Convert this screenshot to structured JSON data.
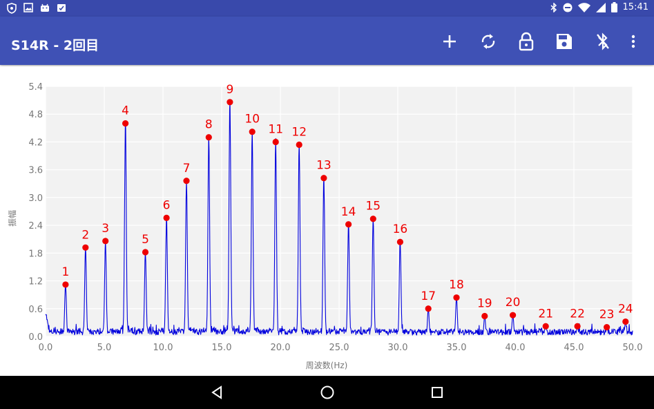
{
  "status_bar": {
    "time": "15:41",
    "left_icons": [
      "shield-icon",
      "image-icon",
      "android-icon",
      "clipboard-check-icon"
    ],
    "right_icons": [
      "bluetooth-icon",
      "do-not-disturb-icon",
      "wifi-icon",
      "signal-icon",
      "battery-icon"
    ]
  },
  "app_bar": {
    "title": "S14R - 2回目",
    "actions": [
      "add-icon",
      "sync-icon",
      "lock-icon",
      "save-icon",
      "bluetooth-disabled-icon",
      "more-vert-icon"
    ]
  },
  "colors": {
    "appbar": "#3f51b5",
    "statusbar": "#3949ab",
    "line": "#0000dd",
    "peak": "#ee0000",
    "plot_bg": "#f2f2f2"
  },
  "chart_data": {
    "type": "line",
    "xlabel": "周波数(Hz)",
    "ylabel": "振幅",
    "xlim": [
      0,
      50
    ],
    "ylim": [
      0,
      5.4
    ],
    "x_ticks": [
      "0.0",
      "5.0",
      "10.0",
      "15.0",
      "20.0",
      "25.0",
      "30.0",
      "35.0",
      "40.0",
      "45.0",
      "50.0"
    ],
    "y_ticks": [
      "0.0",
      "0.6",
      "1.2",
      "1.8",
      "2.4",
      "3.0",
      "3.6",
      "4.2",
      "4.8",
      "5.4"
    ],
    "grid": true,
    "peaks": [
      {
        "label": "1",
        "x": 1.7,
        "y": 1.12
      },
      {
        "label": "2",
        "x": 3.4,
        "y": 1.92
      },
      {
        "label": "3",
        "x": 5.1,
        "y": 2.06
      },
      {
        "label": "4",
        "x": 6.8,
        "y": 4.6
      },
      {
        "label": "5",
        "x": 8.5,
        "y": 1.82
      },
      {
        "label": "6",
        "x": 10.3,
        "y": 2.56
      },
      {
        "label": "7",
        "x": 12.0,
        "y": 3.36
      },
      {
        "label": "8",
        "x": 13.9,
        "y": 4.3
      },
      {
        "label": "9",
        "x": 15.7,
        "y": 5.06
      },
      {
        "label": "10",
        "x": 17.6,
        "y": 4.42
      },
      {
        "label": "11",
        "x": 19.6,
        "y": 4.2
      },
      {
        "label": "12",
        "x": 21.6,
        "y": 4.14
      },
      {
        "label": "13",
        "x": 23.7,
        "y": 3.42
      },
      {
        "label": "14",
        "x": 25.8,
        "y": 2.42
      },
      {
        "label": "15",
        "x": 27.9,
        "y": 2.54
      },
      {
        "label": "16",
        "x": 30.2,
        "y": 2.04
      },
      {
        "label": "17",
        "x": 32.6,
        "y": 0.6
      },
      {
        "label": "18",
        "x": 35.0,
        "y": 0.84
      },
      {
        "label": "19",
        "x": 37.4,
        "y": 0.44
      },
      {
        "label": "20",
        "x": 39.8,
        "y": 0.46
      },
      {
        "label": "21",
        "x": 42.6,
        "y": 0.22
      },
      {
        "label": "22",
        "x": 45.3,
        "y": 0.22
      },
      {
        "label": "23",
        "x": 47.8,
        "y": 0.2
      },
      {
        "label": "24",
        "x": 49.4,
        "y": 0.32
      }
    ]
  },
  "nav_bar": {
    "buttons": [
      "back-icon",
      "home-icon",
      "recents-icon"
    ]
  }
}
